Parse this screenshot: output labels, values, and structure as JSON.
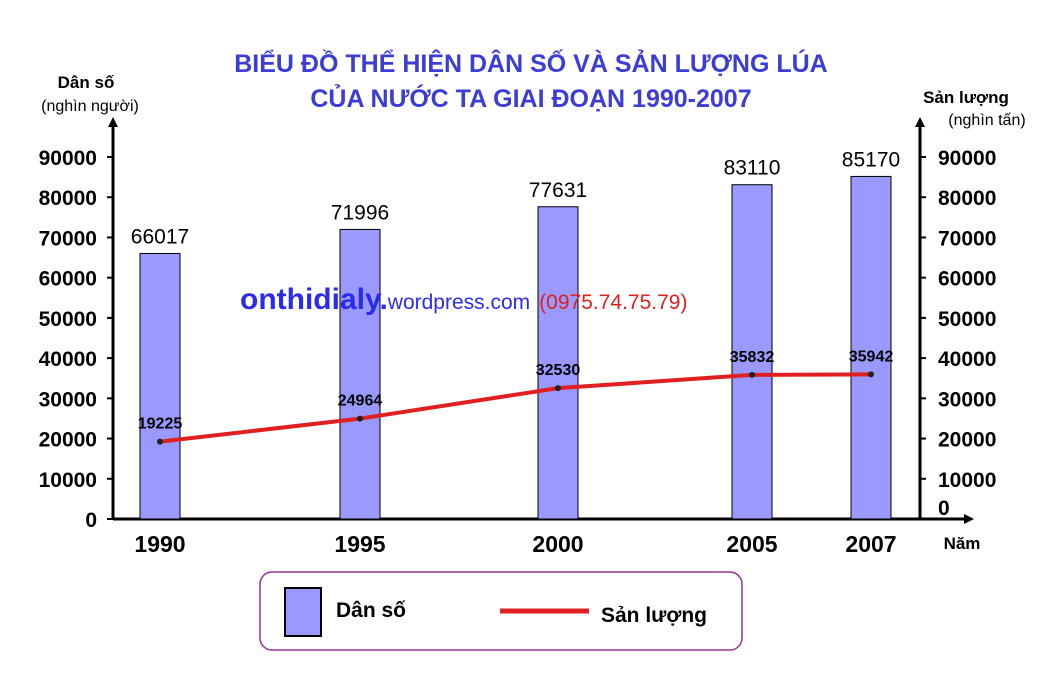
{
  "chart_data": {
    "type": "bar-line combo",
    "title_line1": "BIỂU ĐỒ THỂ HIỆN DÂN SỐ VÀ SẢN LƯỢNG LÚA",
    "title_line2": "CỦA NƯỚC TA GIAI ĐOẠN 1990-2007",
    "left_axis": {
      "title": "Dân số",
      "unit": "(nghìn người)",
      "ylim": [
        0,
        90000
      ],
      "ticks": [
        "90000",
        "80000",
        "70000",
        "60000",
        "50000",
        "40000",
        "30000",
        "20000",
        "10000",
        "0"
      ]
    },
    "right_axis": {
      "title": "Sản lượng",
      "unit": "(nghìn tấn)",
      "ylim": [
        0,
        90000
      ],
      "ticks": [
        "90000",
        "80000",
        "70000",
        "60000",
        "50000",
        "40000",
        "30000",
        "20000",
        "10000",
        "0"
      ]
    },
    "x_axis": {
      "title": "Năm",
      "categories": [
        "1990",
        "1995",
        "2000",
        "2005",
        "2007"
      ],
      "x": [
        1990,
        1995,
        2000,
        2005,
        2007
      ]
    },
    "series": [
      {
        "name": "Dân số",
        "type": "bar",
        "axis": "left",
        "values": [
          66017,
          71996,
          77631,
          83110,
          85170
        ],
        "labels": [
          "66017",
          "71996",
          "77631",
          "83110",
          "85170"
        ]
      },
      {
        "name": "Sản lượng",
        "type": "line",
        "axis": "right",
        "values": [
          19225,
          24964,
          32530,
          35832,
          35942
        ],
        "labels": [
          "19225",
          "24964",
          "32530",
          "35832",
          "35942"
        ]
      }
    ],
    "legend": {
      "placement": "bottom",
      "items": [
        "Dân số",
        "Sản lượng"
      ]
    },
    "colors": {
      "title": "#3c3cd6",
      "bar_fill": "#9999ff",
      "bar_stroke": "#000000",
      "line": "#e02020",
      "legend_border": "#993399"
    }
  },
  "watermark": {
    "site_bold": "onthidialy.",
    "site_rest": "wordpress.com",
    "phone": "(0975.74.75.79)",
    "colors": {
      "site": "#2b2bf0",
      "phone": "#e0201f"
    }
  }
}
